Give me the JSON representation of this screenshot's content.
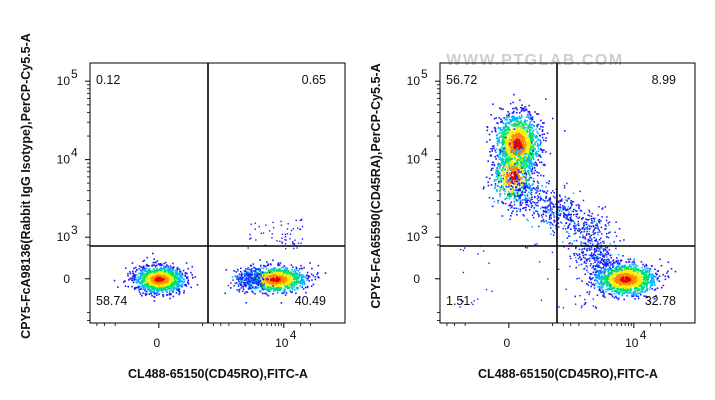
{
  "watermark": "WWW.PTGLAB.COM",
  "colors": {
    "axis": "#000000",
    "gate": "#000000",
    "density": [
      "#1a1aff",
      "#00b4ff",
      "#00e070",
      "#f6f000",
      "#ff8c00",
      "#e60000"
    ]
  },
  "chart_data": [
    {
      "type": "scatter",
      "subtype": "flow-cytometry-density-dot-plot",
      "xlabel": "CL488-65150(CD45RO),FITC-A",
      "ylabel": "CPY5-FcA98136(Rabbit IgG Isotype),PerCP-Cy5.5-A",
      "xscale": "biexponential",
      "yscale": "biexponential",
      "x_ticks": [
        {
          "label": "0",
          "value": 0
        },
        {
          "label": "10",
          "sup": "4",
          "value": 10000
        }
      ],
      "y_ticks": [
        {
          "label": "0",
          "value": 0
        },
        {
          "label": "10",
          "sup": "3",
          "value": 1000
        },
        {
          "label": "10",
          "sup": "4",
          "value": 10000
        },
        {
          "label": "10",
          "sup": "5",
          "value": 100000
        }
      ],
      "quadrants": {
        "upper_left": "0.12",
        "upper_right": "0.65",
        "lower_left": "58.74",
        "lower_right": "40.49"
      },
      "populations": [
        {
          "x_center": 0,
          "y_center": 0,
          "share": 0.59
        },
        {
          "x_center": 7000,
          "y_center": 0,
          "share": 0.4
        }
      ]
    },
    {
      "type": "scatter",
      "subtype": "flow-cytometry-density-dot-plot",
      "xlabel": "CL488-65150(CD45RO),FITC-A",
      "ylabel": "CPY5-FcA65590(CD45RA),PerCP-Cy5.5-A",
      "xscale": "biexponential",
      "yscale": "biexponential",
      "x_ticks": [
        {
          "label": "0",
          "value": 0
        },
        {
          "label": "10",
          "sup": "4",
          "value": 10000
        }
      ],
      "y_ticks": [
        {
          "label": "0",
          "value": 0
        },
        {
          "label": "10",
          "sup": "3",
          "value": 1000
        },
        {
          "label": "10",
          "sup": "4",
          "value": 10000
        },
        {
          "label": "10",
          "sup": "5",
          "value": 100000
        }
      ],
      "quadrants": {
        "upper_left": "56.72",
        "upper_right": "8.99",
        "lower_left": "1.51",
        "lower_right": "32.78"
      },
      "populations": [
        {
          "x_center": 0,
          "y_center": 16000,
          "share": 0.57
        },
        {
          "x_center": 7000,
          "y_center": 0,
          "share": 0.33
        }
      ]
    }
  ]
}
